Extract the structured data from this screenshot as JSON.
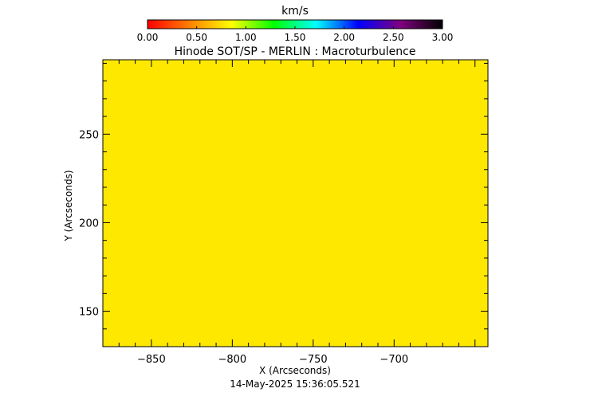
{
  "colorbar": {
    "unit": "km/s",
    "range": [
      0.0,
      3.0
    ],
    "tick_labels": [
      "0.00",
      "0.50",
      "1.00",
      "1.50",
      "2.00",
      "2.50",
      "3.00"
    ],
    "tick_values": [
      0.0,
      0.5,
      1.0,
      1.5,
      2.0,
      2.5,
      3.0
    ],
    "colors": [
      "#ff0000",
      "#ff8000",
      "#ffff00",
      "#00ff00",
      "#00ffff",
      "#0000ff",
      "#800080",
      "#000000"
    ]
  },
  "chart_data": {
    "type": "heatmap",
    "title": "Hinode SOT/SP - MERLIN : Macroturbulence",
    "xlabel": "X (Arcseconds)",
    "ylabel": "Y (Arcseconds)",
    "xlim": [
      -880,
      -642
    ],
    "ylim": [
      130,
      292
    ],
    "x_ticks": [
      -850,
      -800,
      -750,
      -700
    ],
    "x_tick_labels": [
      "−850",
      "−800",
      "−750",
      "−700"
    ],
    "y_ticks": [
      150,
      200,
      250
    ],
    "y_tick_labels": [
      "150",
      "200",
      "250"
    ],
    "value": 1.0,
    "fill_color": "#ffe800",
    "timestamp": "14-May-2025 15:36:05.521"
  }
}
